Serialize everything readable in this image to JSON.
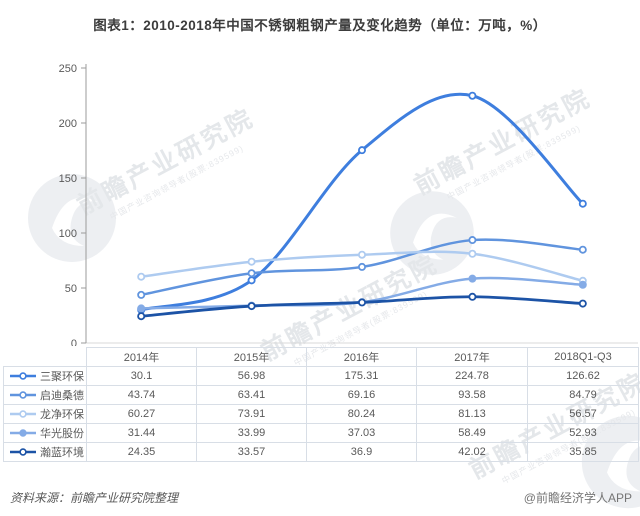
{
  "title": "图表1：2010-2018年中国不锈钢粗钢产量及变化趋势（单位：万吨，%）",
  "footer": {
    "source": "资料来源：前瞻产业研究院整理",
    "credit": "@前瞻经济学人APP"
  },
  "watermark": {
    "text": "前瞻产业研究院",
    "subtext": "中国产业咨询领导者(股票:839599)"
  },
  "chart_data": {
    "type": "line",
    "categories": [
      "2014年",
      "2015年",
      "2016年",
      "2017年",
      "2018Q1-Q3"
    ],
    "series": [
      {
        "name": "三聚环保",
        "values": [
          30.1,
          56.98,
          175.31,
          224.78,
          126.62
        ],
        "color": "#3e7ede",
        "marker": "open",
        "width": 3
      },
      {
        "name": "启迪桑德",
        "values": [
          43.74,
          63.41,
          69.16,
          93.58,
          84.79
        ],
        "color": "#6094de",
        "marker": "open",
        "width": 2.5
      },
      {
        "name": "龙净环保",
        "values": [
          60.27,
          73.91,
          80.24,
          81.13,
          56.57
        ],
        "color": "#aecbf0",
        "marker": "open",
        "width": 2.5
      },
      {
        "name": "华光股份",
        "values": [
          31.44,
          33.99,
          37.03,
          58.49,
          52.93
        ],
        "color": "#84abe6",
        "marker": "filled",
        "width": 2.5
      },
      {
        "name": "瀚蓝环境",
        "values": [
          24.35,
          33.57,
          36.9,
          42.02,
          35.85
        ],
        "color": "#1c53a6",
        "marker": "open",
        "width": 2.8
      }
    ],
    "title": "图表1：2010-2018年中国不锈钢粗钢产量及变化趋势（单位：万吨，%）",
    "xlabel": "",
    "ylabel": "",
    "ylim": [
      0,
      250
    ],
    "yticks": [
      0,
      50,
      100,
      150,
      200,
      250
    ],
    "grid": false,
    "smooth": true,
    "legend_position": "table-left"
  }
}
